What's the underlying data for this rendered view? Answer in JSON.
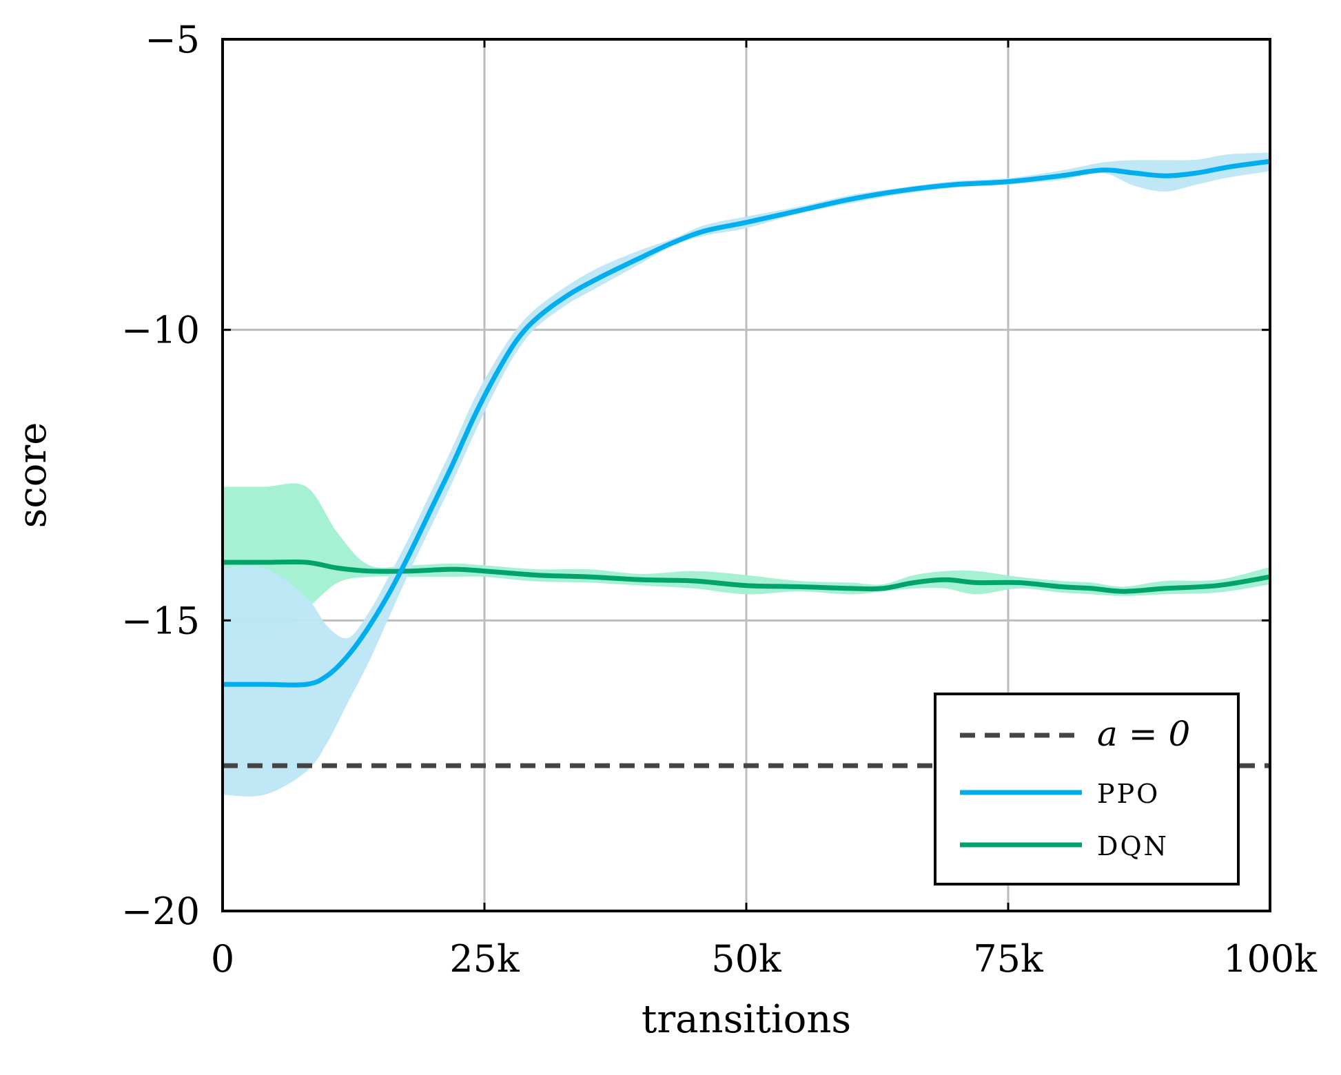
{
  "chart_data": {
    "type": "line",
    "title": "",
    "xlabel": "transitions",
    "ylabel": "score",
    "xlim": [
      0,
      100000
    ],
    "ylim": [
      -20,
      -5
    ],
    "grid": true,
    "legend_position": "bottom-right",
    "x_ticks": [
      {
        "value": 0,
        "label": "0"
      },
      {
        "value": 25000,
        "label": "25k"
      },
      {
        "value": 50000,
        "label": "50k"
      },
      {
        "value": 75000,
        "label": "75k"
      },
      {
        "value": 100000,
        "label": "100k"
      }
    ],
    "y_ticks": [
      {
        "value": -5,
        "label": "−5"
      },
      {
        "value": -10,
        "label": "−10"
      },
      {
        "value": -15,
        "label": "−15"
      },
      {
        "value": -20,
        "label": "−20"
      }
    ],
    "baseline": {
      "name": "a = 0",
      "y": -17.5,
      "color": "#444444",
      "style": "dashed"
    },
    "series": [
      {
        "name": "PPO",
        "color": "#00AEEF",
        "band_color": "#BDE6F5",
        "x": [
          0,
          4000,
          8000,
          10000,
          12000,
          14000,
          16000,
          18000,
          20000,
          22000,
          24000,
          26000,
          28000,
          30000,
          33000,
          36000,
          40000,
          43000,
          46000,
          50000,
          55000,
          60000,
          65000,
          70000,
          75000,
          80000,
          84000,
          87000,
          90000,
          93000,
          96000,
          100000
        ],
        "y": [
          -16.1,
          -16.1,
          -16.1,
          -15.95,
          -15.6,
          -15.1,
          -14.5,
          -13.8,
          -13.05,
          -12.3,
          -11.5,
          -10.8,
          -10.2,
          -9.8,
          -9.4,
          -9.1,
          -8.75,
          -8.5,
          -8.3,
          -8.15,
          -7.95,
          -7.75,
          -7.6,
          -7.5,
          -7.45,
          -7.35,
          -7.25,
          -7.3,
          -7.35,
          -7.3,
          -7.2,
          -7.1
        ],
        "lower": [
          -18.0,
          -18.0,
          -17.6,
          -17.1,
          -16.4,
          -15.7,
          -14.9,
          -14.1,
          -13.35,
          -12.6,
          -11.8,
          -11.05,
          -10.4,
          -9.95,
          -9.55,
          -9.25,
          -8.85,
          -8.55,
          -8.38,
          -8.25,
          -8.0,
          -7.82,
          -7.66,
          -7.55,
          -7.5,
          -7.42,
          -7.3,
          -7.52,
          -7.62,
          -7.5,
          -7.38,
          -7.27
        ],
        "upper": [
          -14.1,
          -14.1,
          -14.6,
          -15.1,
          -15.3,
          -14.85,
          -14.2,
          -13.5,
          -12.75,
          -12.0,
          -11.2,
          -10.55,
          -10.0,
          -9.62,
          -9.23,
          -8.92,
          -8.62,
          -8.43,
          -8.2,
          -8.05,
          -7.88,
          -7.68,
          -7.55,
          -7.44,
          -7.39,
          -7.26,
          -7.12,
          -7.08,
          -7.08,
          -7.07,
          -6.98,
          -6.95
        ]
      },
      {
        "name": "DQN",
        "color": "#00A36C",
        "band_color": "#A1F0D2",
        "x": [
          0,
          4000,
          8000,
          11000,
          14000,
          18000,
          22000,
          25000,
          30000,
          35000,
          40000,
          45000,
          50000,
          55000,
          60000,
          63000,
          66000,
          69000,
          72000,
          76000,
          80000,
          83000,
          86000,
          90000,
          95000,
          100000
        ],
        "y": [
          -14.0,
          -14.0,
          -14.0,
          -14.1,
          -14.15,
          -14.15,
          -14.12,
          -14.15,
          -14.22,
          -14.25,
          -14.3,
          -14.32,
          -14.4,
          -14.42,
          -14.45,
          -14.45,
          -14.35,
          -14.3,
          -14.35,
          -14.35,
          -14.42,
          -14.45,
          -14.5,
          -14.45,
          -14.4,
          -14.25
        ],
        "lower": [
          -15.3,
          -15.3,
          -14.8,
          -14.35,
          -14.25,
          -14.25,
          -14.25,
          -14.25,
          -14.33,
          -14.35,
          -14.4,
          -14.45,
          -14.55,
          -14.5,
          -14.55,
          -14.5,
          -14.45,
          -14.45,
          -14.55,
          -14.45,
          -14.52,
          -14.55,
          -14.58,
          -14.55,
          -14.52,
          -14.38
        ],
        "upper": [
          -12.7,
          -12.7,
          -12.7,
          -13.5,
          -14.05,
          -14.05,
          -14.02,
          -14.05,
          -14.12,
          -14.12,
          -14.2,
          -14.15,
          -14.22,
          -14.32,
          -14.35,
          -14.38,
          -14.22,
          -14.15,
          -14.15,
          -14.25,
          -14.32,
          -14.35,
          -14.42,
          -14.32,
          -14.3,
          -14.08
        ]
      }
    ]
  }
}
